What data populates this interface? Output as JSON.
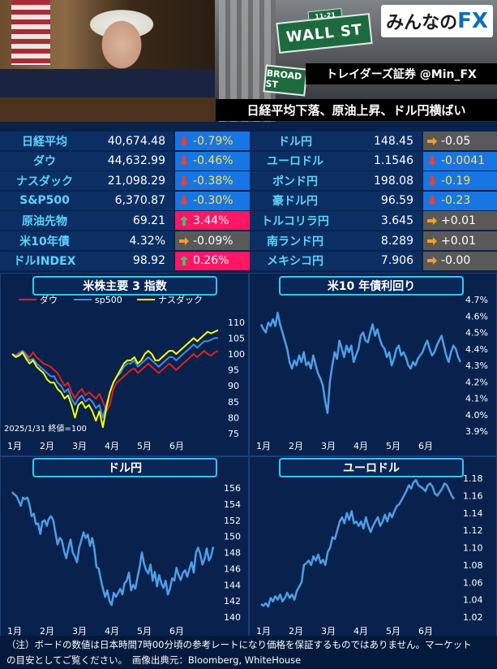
{
  "header": {
    "logo_prefix": "みんなの",
    "logo_fx": "FX",
    "broker": "トレイダーズ証券 @Min_FX",
    "headline": "日経平均下落、原油上昇、ドル円横ばい",
    "sign_wall": "WALL ST",
    "sign_wall_num": "11-21",
    "sign_broad": "BROAD ST"
  },
  "colors": {
    "up": "#ff1664",
    "down": "#1776e4",
    "flat": "#595959",
    "name": "#5ed3ff",
    "line": "#4f9ee8"
  },
  "left_table": [
    {
      "name": "日経平均",
      "value": "40,674.48",
      "change": "-0.79%",
      "dir": "down"
    },
    {
      "name": "ダウ",
      "value": "44,632.99",
      "change": "-0.46%",
      "dir": "down"
    },
    {
      "name": "ナスダック",
      "value": "21,098.29",
      "change": "-0.38%",
      "dir": "down"
    },
    {
      "name": "S&P500",
      "value": "6,370.87",
      "change": "-0.30%",
      "dir": "down"
    },
    {
      "name": "原油先物",
      "value": "69.21",
      "change": "3.44%",
      "dir": "up"
    },
    {
      "name": "米10年債",
      "value": "4.32%",
      "change": "-0.09%",
      "dir": "flat"
    },
    {
      "name": "ドルINDEX",
      "value": "98.92",
      "change": "0.26%",
      "dir": "up"
    }
  ],
  "right_table": [
    {
      "name": "ドル円",
      "value": "148.45",
      "change": "-0.05",
      "dir": "flat"
    },
    {
      "name": "ユーロドル",
      "value": "1.1546",
      "change": "-0.0041",
      "dir": "down"
    },
    {
      "name": "ポンド円",
      "value": "198.08",
      "change": "-0.19",
      "dir": "down"
    },
    {
      "name": "豪ドル円",
      "value": "96.59",
      "change": "-0.23",
      "dir": "down"
    },
    {
      "name": "トルコリラ円",
      "value": "3.645",
      "change": "+0.01",
      "dir": "flat"
    },
    {
      "name": "南ランド円",
      "value": "8.289",
      "change": "+0.01",
      "dir": "flat"
    },
    {
      "name": "メキシコ円",
      "value": "7.906",
      "change": "-0.00",
      "dir": "flat"
    }
  ],
  "footer": {
    "line1": "（注）ボードの数値は日本時間7時00分頃の参考レートになり価格を保証するものではありません。マーケット",
    "line2": "の目安としてご覧ください。　画像出典元：Bloomberg, WhiteHouse"
  },
  "chart_data": [
    {
      "id": "us-stocks",
      "type": "line",
      "title": "米株主要 3 指数",
      "note": "2025/1/31 終値=100",
      "x_labels": [
        "1月",
        "2月",
        "3月",
        "4月",
        "5月",
        "6月"
      ],
      "ylim": [
        75,
        112
      ],
      "yticks": [
        75,
        80,
        85,
        90,
        95,
        100,
        105,
        110
      ],
      "grid": false,
      "legend": "top-left",
      "series": [
        {
          "name": "ダウ",
          "color": "#e02020",
          "values": [
            100,
            99.5,
            100.5,
            101,
            100,
            99,
            100.5,
            99,
            98,
            97,
            96.5,
            96,
            95,
            94,
            92,
            90,
            91,
            88,
            86,
            88,
            89,
            87,
            88,
            87,
            86,
            87.5,
            85,
            82,
            84,
            89,
            91,
            92,
            93,
            94,
            95,
            95.5,
            94,
            95,
            96,
            97,
            96,
            95,
            94,
            95,
            96,
            97,
            96,
            95,
            96,
            97,
            98,
            99,
            100,
            99,
            100,
            101,
            100,
            99.5,
            100.5,
            101
          ]
        },
        {
          "name": "sp500",
          "color": "#3f8fe6",
          "values": [
            100,
            99.5,
            100,
            101,
            99.5,
            98,
            98.5,
            97,
            96,
            95,
            94,
            93,
            93,
            91,
            90,
            88,
            89,
            86,
            84,
            86,
            87,
            85,
            86,
            85,
            83,
            84,
            80,
            84,
            88,
            91,
            93,
            94,
            96,
            97,
            97,
            98,
            96,
            97,
            98,
            99,
            98,
            97,
            96,
            97,
            98,
            99,
            99,
            98,
            99,
            100,
            101,
            102,
            103,
            102,
            103,
            104,
            104,
            104.5,
            105,
            105
          ]
        },
        {
          "name": "ナスダック",
          "color": "#ffff00",
          "values": [
            100,
            99,
            99.5,
            100.5,
            98.5,
            97,
            98,
            96,
            95,
            94,
            92,
            91,
            91,
            89,
            88,
            86,
            87,
            84,
            80,
            84,
            85,
            83,
            84,
            82,
            79,
            82,
            77,
            83,
            88,
            91,
            93,
            95,
            97,
            98,
            98,
            99,
            97,
            98,
            100,
            101,
            100,
            98,
            98,
            99,
            100,
            101,
            101,
            100,
            101,
            102,
            103,
            104,
            105,
            104,
            105,
            106,
            107,
            106.5,
            107,
            107.5
          ]
        }
      ]
    },
    {
      "id": "us10y",
      "type": "line",
      "title": "米10 年債利回り",
      "x_labels": [
        "1月",
        "2月",
        "3月",
        "4月",
        "5月",
        "6月"
      ],
      "ylim": [
        3.9,
        4.7
      ],
      "yticks": [
        "3.9%",
        "4.0%",
        "4.1%",
        "4.2%",
        "4.3%",
        "4.4%",
        "4.5%",
        "4.6%",
        "4.7%"
      ],
      "grid": false,
      "series": [
        {
          "name": "",
          "color": "#4f9ee8",
          "values": [
            4.55,
            4.52,
            4.5,
            4.56,
            4.54,
            4.58,
            4.54,
            4.62,
            4.55,
            4.5,
            4.45,
            4.4,
            4.32,
            4.28,
            4.33,
            4.3,
            4.36,
            4.32,
            4.38,
            4.3,
            4.32,
            4.28,
            4.36,
            4.3,
            4.25,
            4.22,
            4.18,
            4.08,
            4.01,
            4.2,
            4.3,
            4.38,
            4.34,
            4.45,
            4.4,
            4.35,
            4.42,
            4.38,
            4.42,
            4.32,
            4.36,
            4.4,
            4.48,
            4.5,
            4.45,
            4.44,
            4.5,
            4.55,
            4.48,
            4.52,
            4.46,
            4.42,
            4.4,
            4.35,
            4.38,
            4.3,
            4.34,
            4.4,
            4.42,
            4.36,
            4.38,
            4.35,
            4.3,
            4.28,
            4.32,
            4.3,
            4.34,
            4.36,
            4.38,
            4.42,
            4.45,
            4.4,
            4.36,
            4.38,
            4.42,
            4.45,
            4.48,
            4.42,
            4.36,
            4.32,
            4.38,
            4.42,
            4.4,
            4.35,
            4.32
          ]
        }
      ]
    },
    {
      "id": "usdjpy",
      "type": "line",
      "title": "ドル円",
      "x_labels": [
        "1月",
        "2月",
        "3月",
        "4月",
        "5月",
        "6月"
      ],
      "ylim": [
        140,
        156
      ],
      "yticks": [
        140,
        142,
        144,
        146,
        148,
        150,
        152,
        154,
        156
      ],
      "grid": false,
      "series": [
        {
          "name": "",
          "color": "#4f9ee8",
          "values": [
            155.5,
            155.2,
            155.0,
            154.4,
            153.8,
            154.8,
            154.6,
            154.8,
            154.0,
            152.5,
            152.8,
            151.5,
            151.6,
            150.3,
            151.8,
            152.0,
            151.3,
            152.2,
            152.5,
            152.0,
            150.5,
            149.0,
            149.8,
            149.5,
            148.2,
            147.3,
            148.5,
            149.6,
            148.0,
            147.5,
            146.8,
            148.6,
            149.5,
            150.5,
            149.8,
            150.2,
            148.8,
            149.8,
            148.5,
            146.2,
            146.0,
            144.7,
            143.5,
            142.5,
            143.3,
            142.0,
            141.5,
            143.0,
            142.5,
            143.0,
            143.5,
            142.8,
            144.2,
            144.5,
            145.5,
            143.3,
            144.0,
            143.5,
            145.0,
            146.2,
            148.0,
            146.6,
            145.8,
            145.4,
            146.5,
            144.5,
            145.6,
            143.8,
            145.2,
            144.2,
            143.6,
            144.5,
            142.8,
            143.5,
            144.8,
            144.5,
            146.1,
            145.2,
            144.6,
            145.5,
            145.8,
            145.0,
            146.0,
            146.8,
            145.5,
            148.0,
            148.6,
            147.8,
            146.5,
            147.2,
            148.5,
            147.0,
            147.5,
            148.7
          ]
        }
      ]
    },
    {
      "id": "eurusd",
      "type": "line",
      "title": "ユーロドル",
      "x_labels": [
        "1月",
        "2月",
        "3月",
        "4月",
        "5月",
        "6月"
      ],
      "ylim": [
        1.02,
        1.18
      ],
      "yticks": [
        1.02,
        1.04,
        1.06,
        1.08,
        1.1,
        1.12,
        1.14,
        1.16,
        1.18
      ],
      "grid": false,
      "series": [
        {
          "name": "",
          "color": "#4f9ee8",
          "values": [
            1.035,
            1.033,
            1.036,
            1.032,
            1.042,
            1.038,
            1.044,
            1.04,
            1.046,
            1.038,
            1.042,
            1.048,
            1.042,
            1.046,
            1.04,
            1.05,
            1.055,
            1.06,
            1.08,
            1.082,
            1.085,
            1.08,
            1.09,
            1.085,
            1.092,
            1.082,
            1.086,
            1.08,
            1.095,
            1.1,
            1.112,
            1.11,
            1.12,
            1.13,
            1.135,
            1.128,
            1.14,
            1.132,
            1.142,
            1.128,
            1.13,
            1.125,
            1.13,
            1.122,
            1.135,
            1.125,
            1.118,
            1.125,
            1.13,
            1.135,
            1.125,
            1.13,
            1.138,
            1.13,
            1.14,
            1.135,
            1.142,
            1.148,
            1.15,
            1.155,
            1.16,
            1.165,
            1.172,
            1.168,
            1.175,
            1.178,
            1.172,
            1.17,
            1.168,
            1.165,
            1.172,
            1.174,
            1.17,
            1.162,
            1.16,
            1.164,
            1.168,
            1.174,
            1.172,
            1.166,
            1.16,
            1.156
          ]
        }
      ]
    }
  ]
}
